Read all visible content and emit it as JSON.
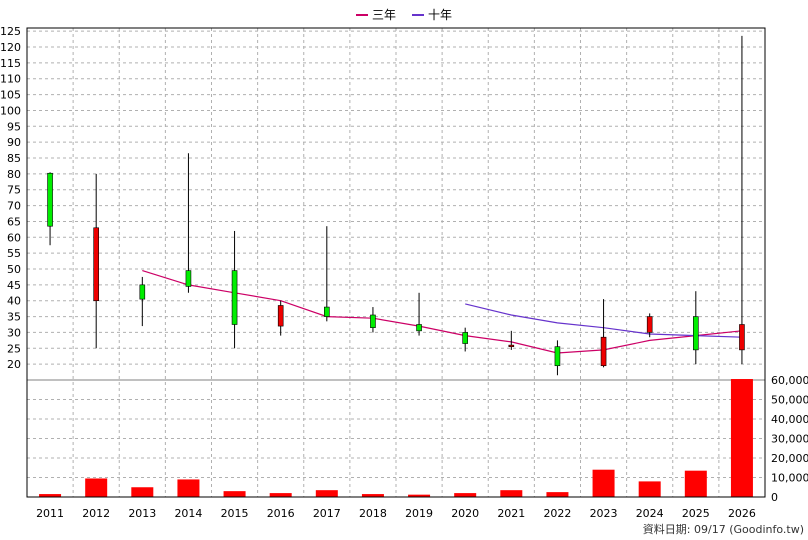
{
  "chart_data": {
    "type": "candlestick",
    "years": [
      "2011",
      "2012",
      "2013",
      "2014",
      "2015",
      "2016",
      "2017",
      "2018",
      "2019",
      "2020",
      "2021",
      "2022",
      "2023",
      "2024",
      "2025",
      "2026"
    ],
    "price": {
      "ylim": [
        15,
        126
      ],
      "yticks": [
        20,
        25,
        30,
        35,
        40,
        45,
        50,
        55,
        60,
        65,
        70,
        75,
        80,
        85,
        90,
        95,
        100,
        105,
        110,
        115,
        120,
        125
      ],
      "candles": [
        {
          "open": 63.5,
          "close": 80.2,
          "high": 80.5,
          "low": 57.5
        },
        {
          "open": 63.0,
          "close": 40.0,
          "high": 80.0,
          "low": 25.0
        },
        {
          "open": 40.5,
          "close": 45.0,
          "high": 47.5,
          "low": 32.0
        },
        {
          "open": 44.5,
          "close": 49.5,
          "high": 86.5,
          "low": 42.5
        },
        {
          "open": 32.5,
          "close": 49.5,
          "high": 62.0,
          "low": 25.0
        },
        {
          "open": 38.5,
          "close": 32.0,
          "high": 40.0,
          "low": 29.0
        },
        {
          "open": 35.0,
          "close": 38.0,
          "high": 63.5,
          "low": 33.5
        },
        {
          "open": 31.5,
          "close": 35.5,
          "high": 38.0,
          "low": 30.0
        },
        {
          "open": 30.5,
          "close": 32.5,
          "high": 42.5,
          "low": 29.0
        },
        {
          "open": 26.5,
          "close": 30.0,
          "high": 31.5,
          "low": 24.0
        },
        {
          "open": 26.0,
          "close": 25.5,
          "high": 30.5,
          "low": 24.5
        },
        {
          "open": 19.5,
          "close": 25.5,
          "high": 27.5,
          "low": 16.5
        },
        {
          "open": 28.5,
          "close": 19.5,
          "high": 40.5,
          "low": 19.0
        },
        {
          "open": 35.0,
          "close": 30.0,
          "high": 36.0,
          "low": 28.5
        },
        {
          "open": 24.5,
          "close": 35.0,
          "high": 43.0,
          "low": 20.0
        },
        {
          "open": 32.5,
          "close": 24.5,
          "high": 123.5,
          "low": 20.0
        }
      ],
      "series": [
        {
          "name": "三年",
          "color": "#cc0066",
          "start_index": 2,
          "values": [
            49.5,
            45.0,
            42.5,
            40.0,
            35.0,
            34.5,
            32.0,
            29.0,
            27.0,
            23.5,
            24.5,
            27.5,
            29.0,
            30.5
          ]
        },
        {
          "name": "十年",
          "color": "#6633cc",
          "start_index": 9,
          "values": [
            39.0,
            35.5,
            33.0,
            31.5,
            29.5,
            29.0,
            28.5
          ]
        }
      ],
      "up_color": "#00ee00",
      "down_color": "#ee0000"
    },
    "volume": {
      "ylim": [
        0,
        60000
      ],
      "yticks": [
        0,
        10000,
        20000,
        30000,
        40000,
        50000,
        60000
      ],
      "tick_labels": [
        "0",
        "10,000",
        "20,000",
        "30,000",
        "40,000",
        "50,000",
        "60,000"
      ],
      "values": [
        1500,
        9500,
        5000,
        9000,
        3000,
        2000,
        3500,
        1500,
        1200,
        2000,
        3500,
        2500,
        14000,
        8000,
        13500,
        60500
      ],
      "color": "#ff0000"
    }
  },
  "legend": [
    "三年",
    "十年"
  ],
  "source_text": "資料日期: 09/17  (Goodinfo.tw)"
}
